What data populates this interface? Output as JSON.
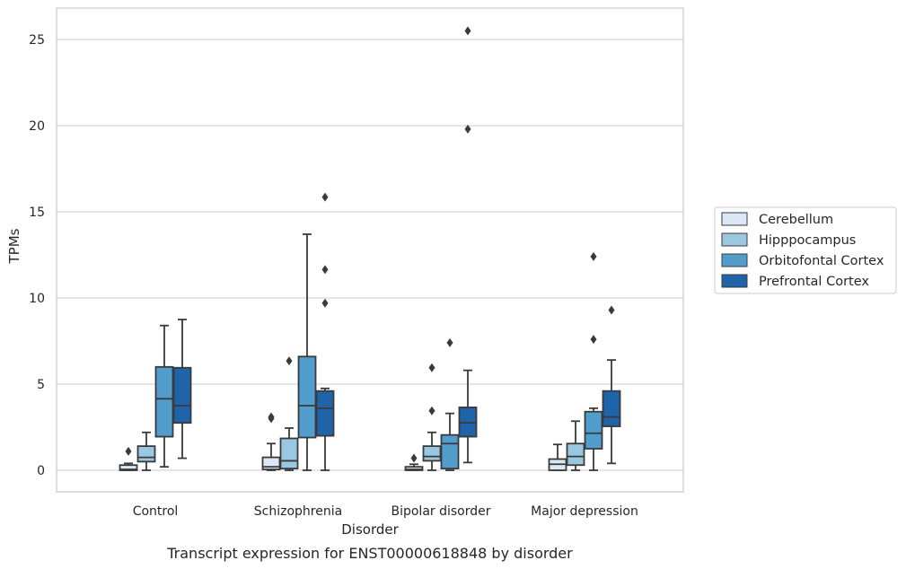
{
  "chart_data": {
    "type": "boxplot",
    "title": "",
    "caption": "Transcript expression for ENST00000618848 by disorder",
    "xlabel": "Disorder",
    "ylabel": "TPMs",
    "ylim": [
      -1.2,
      27
    ],
    "yticks": [
      0,
      5,
      10,
      15,
      20,
      25
    ],
    "grid": "horizontal",
    "legend_position": "right",
    "categories": [
      "Control",
      "Schizophrenia",
      "Bipolar disorder",
      "Major depression"
    ],
    "series": [
      {
        "name": "Cerebellum",
        "color": "#dbe9f6",
        "boxes": [
          {
            "whislo": 0,
            "q1": 0,
            "med": 0.05,
            "q3": 0.3,
            "whishi": 0.4,
            "fliers": [
              1.1
            ]
          },
          {
            "whislo": 0,
            "q1": 0.05,
            "med": 0.2,
            "q3": 0.75,
            "whishi": 1.55,
            "fliers": [
              3.0,
              3.1
            ]
          },
          {
            "whislo": 0,
            "q1": 0,
            "med": 0.05,
            "q3": 0.2,
            "whishi": 0.35,
            "fliers": [
              0.7
            ]
          },
          {
            "whislo": 0,
            "q1": 0,
            "med": 0.35,
            "q3": 0.65,
            "whishi": 1.5,
            "fliers": []
          }
        ]
      },
      {
        "name": "Hipppocampus",
        "color": "#9ac8e0",
        "boxes": [
          {
            "whislo": 0,
            "q1": 0.5,
            "med": 0.75,
            "q3": 1.4,
            "whishi": 2.2,
            "fliers": []
          },
          {
            "whislo": 0,
            "q1": 0.1,
            "med": 0.55,
            "q3": 1.85,
            "whishi": 2.45,
            "fliers": [
              6.35
            ]
          },
          {
            "whislo": 0,
            "q1": 0.55,
            "med": 0.8,
            "q3": 1.4,
            "whishi": 2.2,
            "fliers": [
              3.45,
              5.95
            ]
          },
          {
            "whislo": 0,
            "q1": 0.3,
            "med": 0.8,
            "q3": 1.55,
            "whishi": 2.85,
            "fliers": []
          }
        ]
      },
      {
        "name": "Orbitofontal Cortex",
        "color": "#529dcc",
        "boxes": [
          {
            "whislo": 0.2,
            "q1": 1.95,
            "med": 4.15,
            "q3": 6.0,
            "whishi": 8.4,
            "fliers": []
          },
          {
            "whislo": 0,
            "q1": 1.9,
            "med": 3.75,
            "q3": 6.6,
            "whishi": 13.7,
            "fliers": []
          },
          {
            "whislo": 0,
            "q1": 0.1,
            "med": 1.55,
            "q3": 2.05,
            "whishi": 3.3,
            "fliers": [
              7.4
            ]
          },
          {
            "whislo": 0,
            "q1": 1.25,
            "med": 2.15,
            "q3": 3.4,
            "whishi": 3.6,
            "fliers": [
              7.6,
              12.4
            ]
          }
        ]
      },
      {
        "name": "Prefrontal Cortex",
        "color": "#1f63a8",
        "boxes": [
          {
            "whislo": 0.7,
            "q1": 2.75,
            "med": 3.75,
            "q3": 5.95,
            "whishi": 8.75,
            "fliers": []
          },
          {
            "whislo": 0,
            "q1": 2.0,
            "med": 3.6,
            "q3": 4.6,
            "whishi": 4.75,
            "fliers": [
              9.7,
              11.65,
              15.85
            ]
          },
          {
            "whislo": 0.45,
            "q1": 1.95,
            "med": 2.75,
            "q3": 3.65,
            "whishi": 5.8,
            "fliers": [
              19.8,
              25.5
            ]
          },
          {
            "whislo": 0.4,
            "q1": 2.55,
            "med": 3.1,
            "q3": 4.6,
            "whishi": 6.4,
            "fliers": [
              9.3
            ]
          }
        ]
      }
    ]
  }
}
